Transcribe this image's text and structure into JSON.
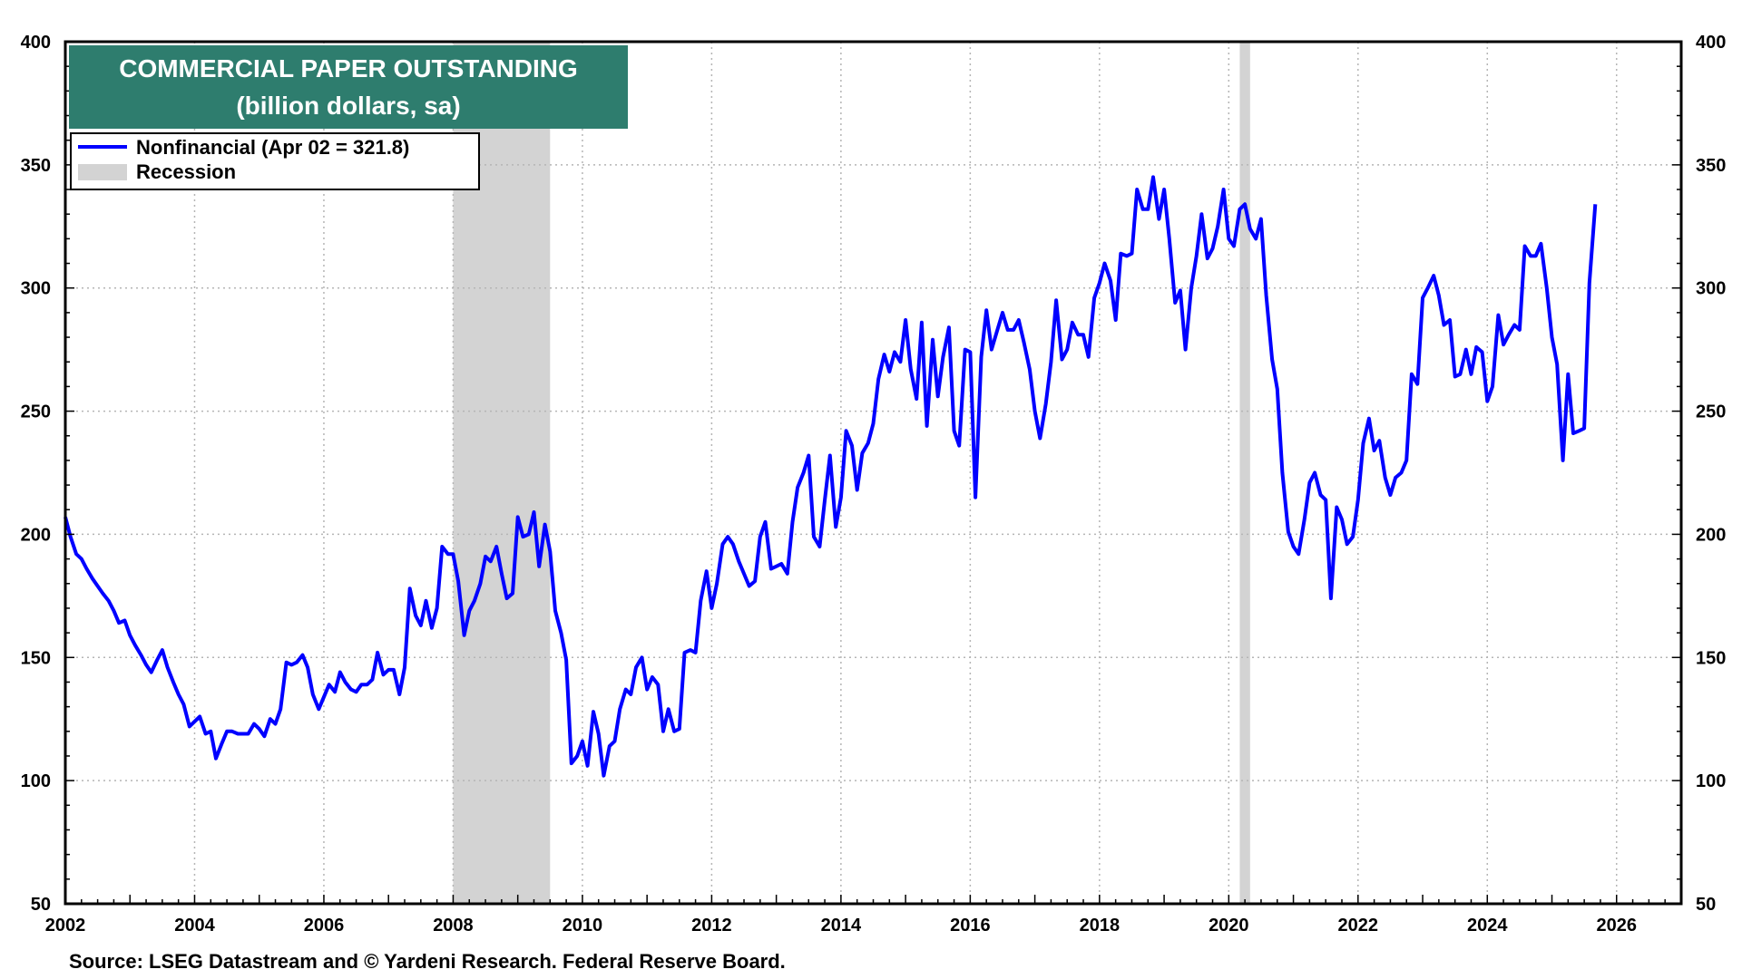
{
  "chart_data": {
    "type": "line",
    "title": "COMMERCIAL PAPER OUTSTANDING",
    "subtitle": "(billion dollars, sa)",
    "source": "Source: LSEG Datastream and © Yardeni Research. Federal Reserve Board.",
    "xlim": [
      2002,
      2027
    ],
    "ylim": [
      50,
      400
    ],
    "x_ticks": [
      "2002",
      "2004",
      "2006",
      "2008",
      "2010",
      "2012",
      "2014",
      "2016",
      "2018",
      "2020",
      "2022",
      "2024",
      "2026"
    ],
    "y_ticks": [
      "50",
      "100",
      "150",
      "200",
      "250",
      "300",
      "350",
      "400"
    ],
    "grid": true,
    "legend_placement": "top-left",
    "colors": {
      "series": "#0000ff",
      "recession": "#d3d3d3",
      "title_bg": "#2e7d6e"
    },
    "series": [
      {
        "name": "Nonfinancial",
        "legend_label": "Nonfinancial  (Apr 02 = 321.8)",
        "points": [
          [
            2002.0,
            207
          ],
          [
            2002.08,
            199
          ],
          [
            2002.17,
            192
          ],
          [
            2002.25,
            190
          ],
          [
            2002.33,
            186
          ],
          [
            2002.42,
            182
          ],
          [
            2002.5,
            179
          ],
          [
            2002.58,
            176
          ],
          [
            2002.67,
            173
          ],
          [
            2002.75,
            169
          ],
          [
            2002.83,
            164
          ],
          [
            2002.92,
            165
          ],
          [
            2003.0,
            159
          ],
          [
            2003.08,
            155
          ],
          [
            2003.17,
            151
          ],
          [
            2003.25,
            147
          ],
          [
            2003.33,
            144
          ],
          [
            2003.42,
            149
          ],
          [
            2003.5,
            153
          ],
          [
            2003.58,
            146
          ],
          [
            2003.67,
            140
          ],
          [
            2003.75,
            135
          ],
          [
            2003.83,
            131
          ],
          [
            2003.92,
            122
          ],
          [
            2004.0,
            124
          ],
          [
            2004.08,
            126
          ],
          [
            2004.17,
            119
          ],
          [
            2004.25,
            120
          ],
          [
            2004.33,
            109
          ],
          [
            2004.42,
            115
          ],
          [
            2004.5,
            120
          ],
          [
            2004.58,
            120
          ],
          [
            2004.67,
            119
          ],
          [
            2004.75,
            119
          ],
          [
            2004.83,
            119
          ],
          [
            2004.92,
            123
          ],
          [
            2005.0,
            121
          ],
          [
            2005.08,
            118
          ],
          [
            2005.17,
            125
          ],
          [
            2005.25,
            123
          ],
          [
            2005.33,
            129
          ],
          [
            2005.42,
            148
          ],
          [
            2005.5,
            147
          ],
          [
            2005.58,
            148
          ],
          [
            2005.67,
            151
          ],
          [
            2005.75,
            146
          ],
          [
            2005.83,
            135
          ],
          [
            2005.92,
            129
          ],
          [
            2006.0,
            134
          ],
          [
            2006.08,
            139
          ],
          [
            2006.17,
            136
          ],
          [
            2006.25,
            144
          ],
          [
            2006.33,
            140
          ],
          [
            2006.42,
            137
          ],
          [
            2006.5,
            136
          ],
          [
            2006.58,
            139
          ],
          [
            2006.67,
            139
          ],
          [
            2006.75,
            141
          ],
          [
            2006.83,
            152
          ],
          [
            2006.92,
            143
          ],
          [
            2007.0,
            145
          ],
          [
            2007.08,
            145
          ],
          [
            2007.17,
            135
          ],
          [
            2007.25,
            146
          ],
          [
            2007.33,
            178
          ],
          [
            2007.42,
            167
          ],
          [
            2007.5,
            163
          ],
          [
            2007.58,
            173
          ],
          [
            2007.67,
            162
          ],
          [
            2007.75,
            170
          ],
          [
            2007.83,
            195
          ],
          [
            2007.92,
            192
          ],
          [
            2008.0,
            192
          ],
          [
            2008.08,
            181
          ],
          [
            2008.17,
            159
          ],
          [
            2008.25,
            169
          ],
          [
            2008.33,
            173
          ],
          [
            2008.42,
            180
          ],
          [
            2008.5,
            191
          ],
          [
            2008.58,
            189
          ],
          [
            2008.67,
            195
          ],
          [
            2008.75,
            184
          ],
          [
            2008.83,
            174
          ],
          [
            2008.92,
            176
          ],
          [
            2009.0,
            207
          ],
          [
            2009.08,
            199
          ],
          [
            2009.17,
            200
          ],
          [
            2009.25,
            209
          ],
          [
            2009.33,
            187
          ],
          [
            2009.42,
            204
          ],
          [
            2009.5,
            193
          ],
          [
            2009.58,
            169
          ],
          [
            2009.67,
            160
          ],
          [
            2009.75,
            149
          ],
          [
            2009.83,
            107
          ],
          [
            2009.92,
            110
          ],
          [
            2010.0,
            116
          ],
          [
            2010.08,
            106
          ],
          [
            2010.17,
            128
          ],
          [
            2010.25,
            119
          ],
          [
            2010.33,
            102
          ],
          [
            2010.42,
            114
          ],
          [
            2010.5,
            116
          ],
          [
            2010.58,
            129
          ],
          [
            2010.67,
            137
          ],
          [
            2010.75,
            135
          ],
          [
            2010.83,
            146
          ],
          [
            2010.92,
            150
          ],
          [
            2011.0,
            137
          ],
          [
            2011.08,
            142
          ],
          [
            2011.17,
            139
          ],
          [
            2011.25,
            120
          ],
          [
            2011.33,
            129
          ],
          [
            2011.42,
            120
          ],
          [
            2011.5,
            121
          ],
          [
            2011.58,
            152
          ],
          [
            2011.67,
            153
          ],
          [
            2011.75,
            152
          ],
          [
            2011.83,
            173
          ],
          [
            2011.92,
            185
          ],
          [
            2012.0,
            170
          ],
          [
            2012.08,
            180
          ],
          [
            2012.17,
            196
          ],
          [
            2012.25,
            199
          ],
          [
            2012.33,
            196
          ],
          [
            2012.42,
            189
          ],
          [
            2012.5,
            184
          ],
          [
            2012.58,
            179
          ],
          [
            2012.67,
            181
          ],
          [
            2012.75,
            199
          ],
          [
            2012.83,
            205
          ],
          [
            2012.92,
            186
          ],
          [
            2013.0,
            187
          ],
          [
            2013.08,
            188
          ],
          [
            2013.17,
            184
          ],
          [
            2013.25,
            205
          ],
          [
            2013.33,
            219
          ],
          [
            2013.42,
            225
          ],
          [
            2013.5,
            232
          ],
          [
            2013.58,
            199
          ],
          [
            2013.67,
            195
          ],
          [
            2013.75,
            214
          ],
          [
            2013.83,
            232
          ],
          [
            2013.92,
            203
          ],
          [
            2014.0,
            215
          ],
          [
            2014.08,
            242
          ],
          [
            2014.17,
            236
          ],
          [
            2014.25,
            218
          ],
          [
            2014.33,
            233
          ],
          [
            2014.42,
            237
          ],
          [
            2014.5,
            245
          ],
          [
            2014.58,
            263
          ],
          [
            2014.67,
            273
          ],
          [
            2014.75,
            266
          ],
          [
            2014.83,
            274
          ],
          [
            2014.92,
            270
          ],
          [
            2015.0,
            287
          ],
          [
            2015.08,
            267
          ],
          [
            2015.17,
            255
          ],
          [
            2015.25,
            286
          ],
          [
            2015.33,
            244
          ],
          [
            2015.42,
            279
          ],
          [
            2015.5,
            256
          ],
          [
            2015.58,
            272
          ],
          [
            2015.67,
            284
          ],
          [
            2015.75,
            242
          ],
          [
            2015.83,
            236
          ],
          [
            2015.92,
            275
          ],
          [
            2016.0,
            274
          ],
          [
            2016.08,
            215
          ],
          [
            2016.17,
            272
          ],
          [
            2016.25,
            291
          ],
          [
            2016.33,
            275
          ],
          [
            2016.42,
            283
          ],
          [
            2016.5,
            290
          ],
          [
            2016.58,
            283
          ],
          [
            2016.67,
            283
          ],
          [
            2016.75,
            287
          ],
          [
            2016.83,
            278
          ],
          [
            2016.92,
            267
          ],
          [
            2017.0,
            250
          ],
          [
            2017.08,
            239
          ],
          [
            2017.17,
            253
          ],
          [
            2017.25,
            270
          ],
          [
            2017.33,
            295
          ],
          [
            2017.42,
            271
          ],
          [
            2017.5,
            275
          ],
          [
            2017.58,
            286
          ],
          [
            2017.67,
            281
          ],
          [
            2017.75,
            281
          ],
          [
            2017.83,
            272
          ],
          [
            2017.92,
            296
          ],
          [
            2018.0,
            302
          ],
          [
            2018.08,
            310
          ],
          [
            2018.17,
            303
          ],
          [
            2018.25,
            287
          ],
          [
            2018.33,
            314
          ],
          [
            2018.42,
            313
          ],
          [
            2018.5,
            314
          ],
          [
            2018.58,
            340
          ],
          [
            2018.67,
            332
          ],
          [
            2018.75,
            332
          ],
          [
            2018.83,
            345
          ],
          [
            2018.92,
            328
          ],
          [
            2019.0,
            340
          ],
          [
            2019.08,
            320
          ],
          [
            2019.17,
            294
          ],
          [
            2019.25,
            299
          ],
          [
            2019.33,
            275
          ],
          [
            2019.42,
            300
          ],
          [
            2019.5,
            313
          ],
          [
            2019.58,
            330
          ],
          [
            2019.67,
            312
          ],
          [
            2019.75,
            316
          ],
          [
            2019.83,
            325
          ],
          [
            2019.92,
            340
          ],
          [
            2020.0,
            320
          ],
          [
            2020.08,
            317
          ],
          [
            2020.17,
            332
          ],
          [
            2020.25,
            334
          ],
          [
            2020.33,
            324
          ],
          [
            2020.42,
            320
          ],
          [
            2020.5,
            328
          ],
          [
            2020.58,
            297
          ],
          [
            2020.67,
            271
          ],
          [
            2020.75,
            259
          ],
          [
            2020.83,
            225
          ],
          [
            2020.92,
            201
          ],
          [
            2021.0,
            195
          ],
          [
            2021.08,
            192
          ],
          [
            2021.17,
            206
          ],
          [
            2021.25,
            221
          ],
          [
            2021.33,
            225
          ],
          [
            2021.42,
            216
          ],
          [
            2021.5,
            214
          ],
          [
            2021.58,
            174
          ],
          [
            2021.67,
            211
          ],
          [
            2021.75,
            206
          ],
          [
            2021.83,
            196
          ],
          [
            2021.92,
            199
          ],
          [
            2022.0,
            214
          ],
          [
            2022.08,
            237
          ],
          [
            2022.17,
            247
          ],
          [
            2022.25,
            234
          ],
          [
            2022.33,
            238
          ],
          [
            2022.42,
            223
          ],
          [
            2022.5,
            216
          ],
          [
            2022.58,
            223
          ],
          [
            2022.67,
            225
          ],
          [
            2022.75,
            230
          ],
          [
            2022.83,
            265
          ],
          [
            2022.92,
            261
          ],
          [
            2023.0,
            296
          ],
          [
            2023.08,
            300
          ],
          [
            2023.17,
            305
          ],
          [
            2023.25,
            297
          ],
          [
            2023.33,
            285
          ],
          [
            2023.42,
            287
          ],
          [
            2023.5,
            264
          ],
          [
            2023.58,
            265
          ],
          [
            2023.67,
            275
          ],
          [
            2023.75,
            265
          ],
          [
            2023.83,
            276
          ],
          [
            2023.92,
            274
          ],
          [
            2024.0,
            254
          ],
          [
            2024.08,
            260
          ],
          [
            2024.17,
            289
          ],
          [
            2024.25,
            277
          ],
          [
            2024.33,
            281
          ],
          [
            2024.42,
            285
          ],
          [
            2024.5,
            283
          ],
          [
            2024.58,
            317
          ],
          [
            2024.67,
            313
          ],
          [
            2024.75,
            313
          ],
          [
            2024.83,
            318
          ],
          [
            2024.92,
            300
          ],
          [
            2025.0,
            280
          ],
          [
            2025.08,
            269
          ],
          [
            2025.17,
            230
          ],
          [
            2025.25,
            265
          ],
          [
            2025.33,
            241
          ],
          [
            2025.42,
            242
          ],
          [
            2025.5,
            243
          ],
          [
            2025.58,
            302
          ],
          [
            2025.67,
            334
          ]
        ]
      }
    ],
    "recessions": [
      [
        2008.0,
        2009.5
      ],
      [
        2020.17,
        2020.33
      ]
    ],
    "legend_recession_label": "Recession"
  }
}
